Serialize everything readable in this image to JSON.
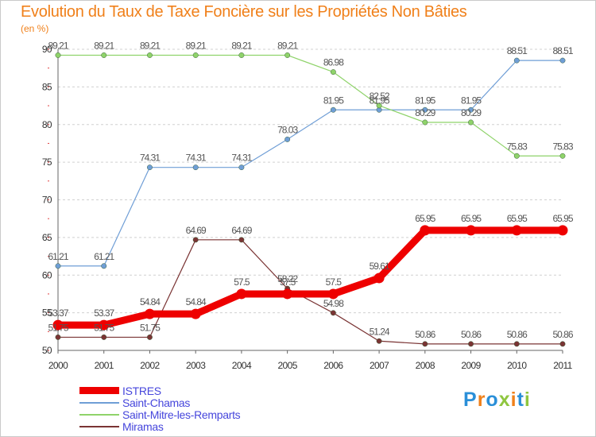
{
  "title": "Evolution du Taux de Taxe Foncière sur les Propriétés Non Bâties",
  "subtitle": "(en %)",
  "logo": "Proxiti",
  "colors": {
    "ISTRES": "#ee0000",
    "Saint-Chamas": "#6f9ed6",
    "Saint-Mitre-les-Remparts": "#8fd36a",
    "Miramas": "#7a3434",
    "grid": "#d0d0d0",
    "axis": "#666666",
    "title": "#f0801a",
    "legend_text": "#4646dc"
  },
  "chart_data": {
    "type": "line",
    "x": [
      "2000",
      "2001",
      "2002",
      "2003",
      "2004",
      "2005",
      "2006",
      "2007",
      "2008",
      "2009",
      "2010",
      "2011"
    ],
    "yticks": [
      50,
      55,
      60,
      65,
      70,
      75,
      80,
      85,
      90
    ],
    "ylim": [
      50,
      90
    ],
    "grid": "horizontal dashed",
    "legend": "bottom-left",
    "series": [
      {
        "name": "Saint-Chamas",
        "values": [
          61.21,
          61.21,
          74.31,
          74.31,
          74.31,
          78.03,
          81.95,
          81.95,
          81.95,
          81.95,
          88.51,
          88.51
        ],
        "labels": [
          "61.21",
          "61.21",
          "74.31",
          "74.31",
          "74.31",
          "78.03",
          "81.95",
          "81.95",
          "81.95",
          "81.95",
          "88.51",
          "88.51"
        ]
      },
      {
        "name": "Saint-Mitre-les-Remparts",
        "values": [
          89.21,
          89.21,
          89.21,
          89.21,
          89.21,
          89.21,
          86.98,
          82.52,
          80.29,
          80.29,
          75.83,
          75.83
        ],
        "labels": [
          "89.21",
          "89.21",
          "89.21",
          "89.21",
          "89.21",
          "89.21",
          "86.98",
          "82.52",
          "80.29",
          "80.29",
          "75.83",
          "75.83"
        ]
      },
      {
        "name": "Miramas",
        "values": [
          51.75,
          51.75,
          51.75,
          64.69,
          64.69,
          58.22,
          54.98,
          51.24,
          50.86,
          50.86,
          50.86,
          50.86
        ],
        "labels": [
          "51.75",
          "51.75",
          "51.75",
          "64.69",
          "64.69",
          "58.22",
          "54.98",
          "51.24",
          "50.86",
          "50.86",
          "50.86",
          "50.86"
        ]
      },
      {
        "name": "ISTRES",
        "values": [
          53.37,
          53.37,
          54.84,
          54.84,
          57.5,
          57.5,
          57.5,
          59.61,
          65.95,
          65.95,
          65.95,
          65.95
        ],
        "labels": [
          "53.37",
          "53.37",
          "54.84",
          "54.84",
          "57.5",
          "57.5",
          "57.5",
          "59.61",
          "65.95",
          "65.95",
          "65.95",
          "65.95"
        ]
      }
    ],
    "legend_order": [
      "ISTRES",
      "Saint-Chamas",
      "Saint-Mitre-les-Remparts",
      "Miramas"
    ]
  }
}
